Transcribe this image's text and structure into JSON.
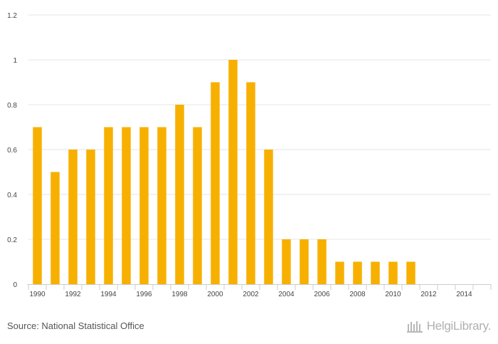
{
  "chart_data": {
    "type": "bar",
    "title": "",
    "xlabel": "",
    "ylabel": "",
    "categories": [
      "1990",
      "1991",
      "1992",
      "1993",
      "1994",
      "1995",
      "1996",
      "1997",
      "1998",
      "1999",
      "2000",
      "2001",
      "2002",
      "2003",
      "2004",
      "2005",
      "2006",
      "2007",
      "2008",
      "2009",
      "2010",
      "2011",
      "2012",
      "2013",
      "2014",
      "2015"
    ],
    "values": [
      0.7,
      0.5,
      0.6,
      0.6,
      0.7,
      0.7,
      0.7,
      0.7,
      0.8,
      0.7,
      0.9,
      1.0,
      0.9,
      0.6,
      0.2,
      0.2,
      0.2,
      0.1,
      0.1,
      0.1,
      0.1,
      0.1,
      null,
      null,
      null,
      null
    ],
    "x_tick_labels": [
      "1990",
      "1992",
      "1994",
      "1996",
      "1998",
      "2000",
      "2002",
      "2004",
      "2006",
      "2008",
      "2010",
      "2012",
      "2014"
    ],
    "y_ticks": [
      0,
      0.2,
      0.4,
      0.6,
      0.8,
      1,
      1.2
    ],
    "y_tick_labels": [
      "0",
      "0.2",
      "0.4",
      "0.6",
      "0.8",
      "1",
      "1.2"
    ],
    "ylim": [
      0,
      1.2
    ],
    "grid": true,
    "colors": {
      "bar": "#f7b000",
      "grid": "#e6e6e6",
      "axis": "#cccccc"
    }
  },
  "footer": {
    "source": "Source: National Statistical Office",
    "logo_text": "HelgiLibrary."
  }
}
